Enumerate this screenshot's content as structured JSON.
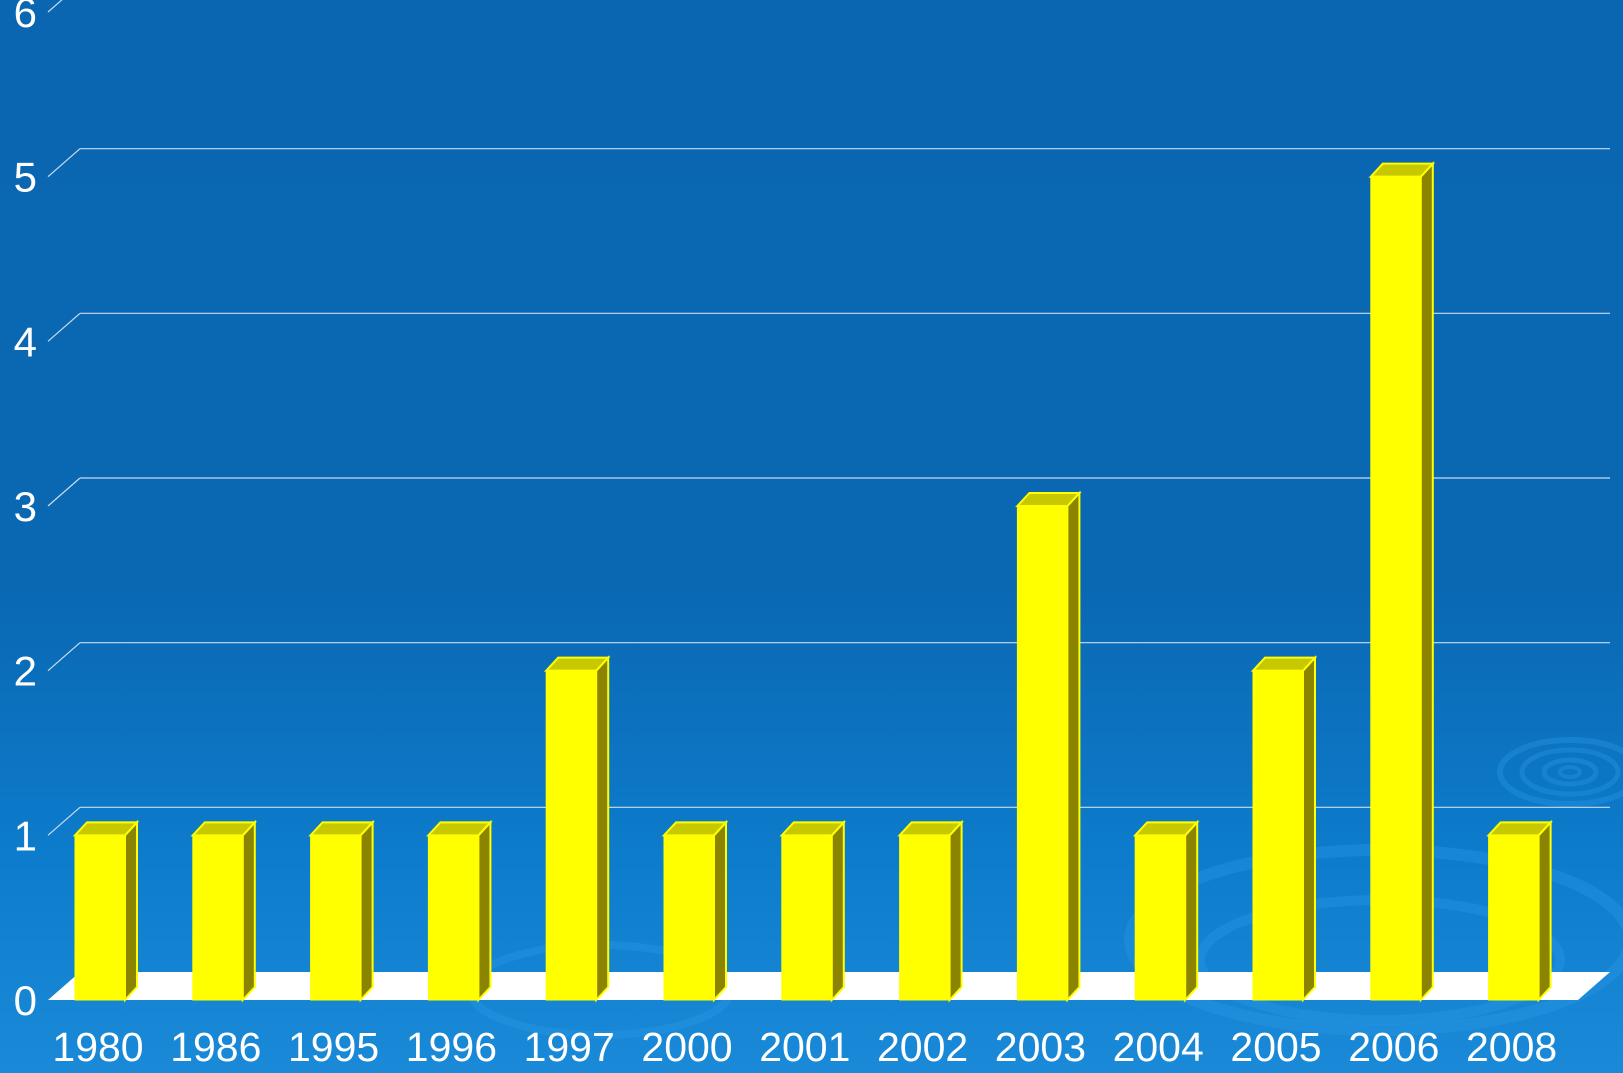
{
  "chart_data": {
    "type": "bar",
    "categories": [
      "1980",
      "1986",
      "1995",
      "1996",
      "1997",
      "2000",
      "2001",
      "2002",
      "2003",
      "2004",
      "2005",
      "2006",
      "2008"
    ],
    "values": [
      1,
      1,
      1,
      1,
      2,
      1,
      1,
      1,
      3,
      1,
      2,
      5,
      1
    ],
    "y_ticks": [
      "0",
      "1",
      "2",
      "3",
      "4",
      "5",
      "6"
    ],
    "ylim": [
      0,
      6
    ],
    "grid": true,
    "style": "3d-column",
    "colors": {
      "background": "#0a66b0",
      "bar_front": "#ffff00",
      "bar_top": "#c8c800",
      "bar_side": "#8a8400",
      "grid": "#c8dcf0",
      "floor": "#ffffff",
      "text": "#ffffff"
    }
  }
}
